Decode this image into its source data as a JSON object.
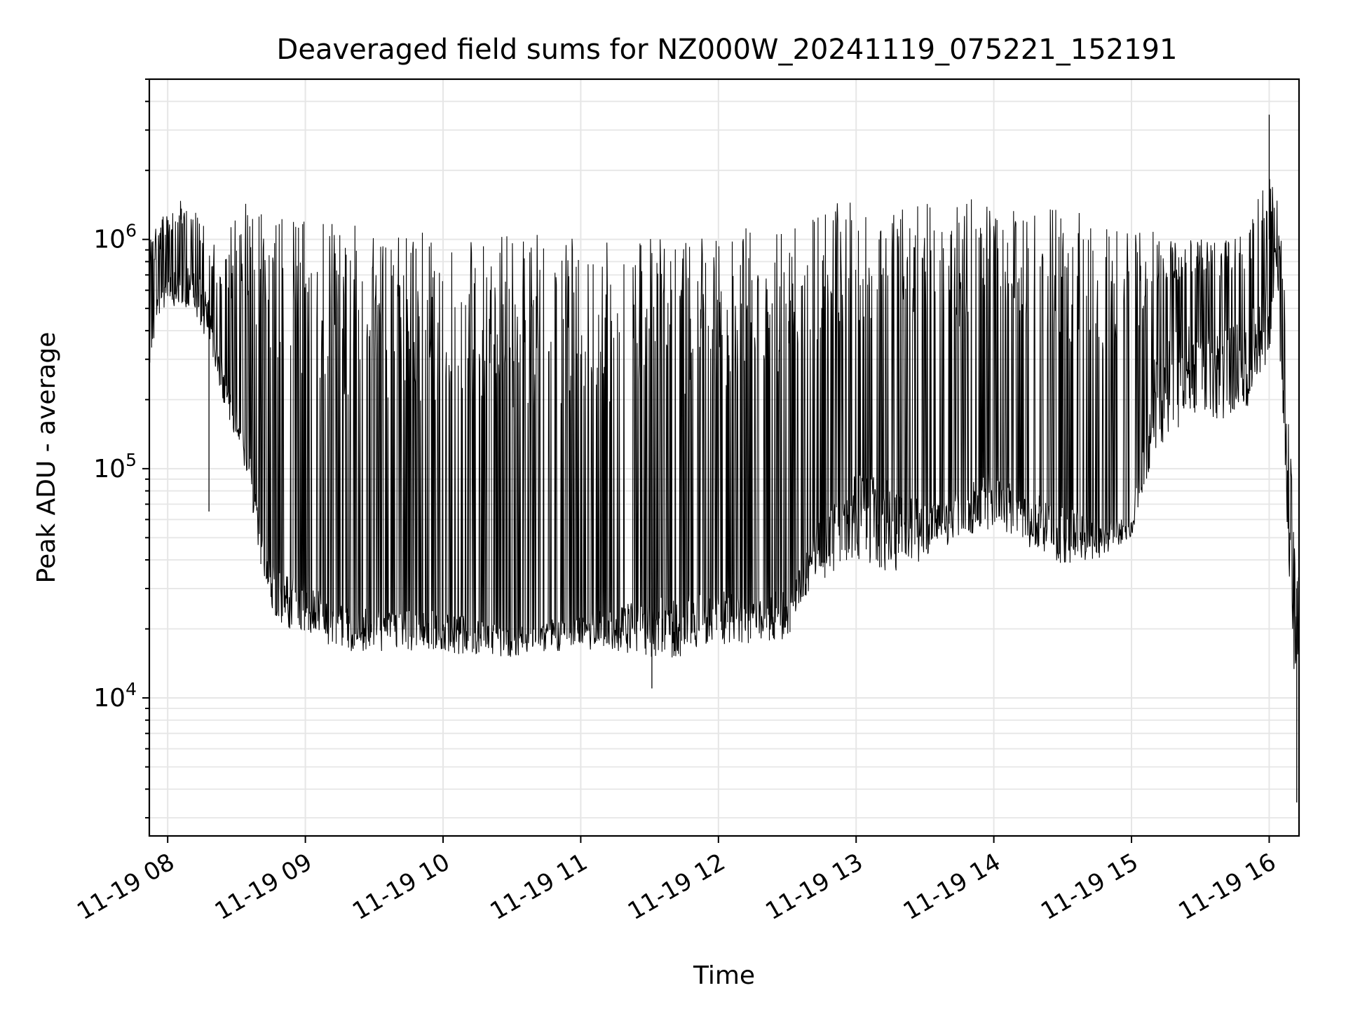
{
  "chart_data": {
    "type": "line",
    "title": "Deaveraged field sums for NZ000W_20241119_075221_152191",
    "xlabel": "Time",
    "ylabel": "Peak ADU - average",
    "yscale": "log",
    "ylim": [
      2500,
      5000000
    ],
    "xlim": [
      "2024-11-19 07:52",
      "2024-11-19 16:13"
    ],
    "grid": true,
    "line_color": "#000000",
    "grid_color": "#e6e6e6",
    "x_ticks": [
      {
        "value": "2024-11-19 08:00",
        "label": "11-19 08"
      },
      {
        "value": "2024-11-19 09:00",
        "label": "11-19 09"
      },
      {
        "value": "2024-11-19 10:00",
        "label": "11-19 10"
      },
      {
        "value": "2024-11-19 11:00",
        "label": "11-19 11"
      },
      {
        "value": "2024-11-19 12:00",
        "label": "11-19 12"
      },
      {
        "value": "2024-11-19 13:00",
        "label": "11-19 13"
      },
      {
        "value": "2024-11-19 14:00",
        "label": "11-19 14"
      },
      {
        "value": "2024-11-19 15:00",
        "label": "11-19 15"
      },
      {
        "value": "2024-11-19 16:00",
        "label": "11-19 16"
      }
    ],
    "y_ticks": [
      {
        "value": 10000,
        "base": "10",
        "exp": "4"
      },
      {
        "value": 100000,
        "base": "10",
        "exp": "5"
      },
      {
        "value": 1000000,
        "base": "10",
        "exp": "6"
      }
    ],
    "envelope": {
      "t": [
        "07:52",
        "07:55",
        "08:00",
        "08:05",
        "08:10",
        "08:15",
        "08:20",
        "08:25",
        "08:30",
        "08:35",
        "08:40",
        "08:45",
        "08:50",
        "09:00",
        "09:10",
        "09:20",
        "09:30",
        "09:45",
        "10:00",
        "10:15",
        "10:30",
        "10:45",
        "11:00",
        "11:15",
        "11:30",
        "11:45",
        "12:00",
        "12:15",
        "12:30",
        "12:40",
        "12:50",
        "13:00",
        "13:15",
        "13:30",
        "13:45",
        "14:00",
        "14:15",
        "14:30",
        "14:45",
        "15:00",
        "15:10",
        "15:20",
        "15:30",
        "15:40",
        "15:50",
        "16:00",
        "16:03",
        "16:06",
        "16:09",
        "16:11",
        "16:13"
      ],
      "high": [
        1100000,
        1200000,
        1300000,
        1500000,
        1500000,
        1200000,
        1000000,
        900000,
        1500000,
        1500000,
        1300000,
        1300000,
        1250000,
        1200000,
        1200000,
        1150000,
        1150000,
        1120000,
        1100000,
        1080000,
        1050000,
        1050000,
        1050000,
        1050000,
        1050000,
        1050000,
        1100000,
        1200000,
        1250000,
        1400000,
        1450000,
        1450000,
        1400000,
        1450000,
        1500000,
        1500000,
        1400000,
        1350000,
        1300000,
        1200000,
        1100000,
        1000000,
        1000000,
        1000000,
        1100000,
        2000000,
        1700000,
        900000,
        150000,
        45000,
        35000
      ],
      "mid": [
        350000,
        550000,
        700000,
        750000,
        750000,
        700000,
        450000,
        250000,
        180000,
        130000,
        60000,
        40000,
        35000,
        32000,
        28000,
        25000,
        25000,
        24000,
        24000,
        22000,
        20000,
        22000,
        23000,
        25000,
        27000,
        28000,
        30000,
        28000,
        30000,
        50000,
        80000,
        100000,
        90000,
        70000,
        80000,
        100000,
        80000,
        70000,
        60000,
        60000,
        350000,
        400000,
        450000,
        400000,
        450000,
        700000,
        1000000,
        300000,
        80000,
        25000,
        20000
      ],
      "low": [
        250000,
        450000,
        500000,
        500000,
        500000,
        400000,
        300000,
        180000,
        130000,
        90000,
        40000,
        25000,
        20000,
        19000,
        17000,
        16000,
        16000,
        16000,
        16000,
        15000,
        15000,
        16000,
        16000,
        16000,
        15000,
        15000,
        17000,
        17000,
        18000,
        30000,
        35000,
        40000,
        35000,
        40000,
        50000,
        55000,
        45000,
        38000,
        40000,
        50000,
        120000,
        150000,
        180000,
        150000,
        180000,
        300000,
        800000,
        150000,
        30000,
        10000,
        15000
      ]
    },
    "annotations": {
      "min_point": {
        "t": "16:12",
        "value": 3500
      },
      "max_point": {
        "t": "16:00",
        "value": 3500000
      },
      "dip_0818": {
        "t": "08:18",
        "value": 65000
      },
      "dip_1130": {
        "t": "11:31",
        "value": 11000
      }
    }
  }
}
